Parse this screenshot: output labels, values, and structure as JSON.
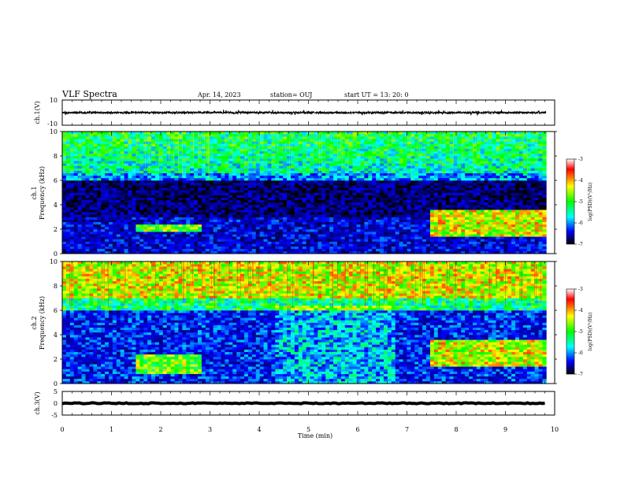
{
  "header": {
    "title": "VLF Spectra",
    "date": "Apr. 14, 2023",
    "station": "station= OUJ",
    "start": "start  UT  =   13: 20: 0"
  },
  "chart_data": [
    {
      "type": "line",
      "panel": "ch1-waveform",
      "ylabel": "ch.1(V)",
      "ylim": [
        -10,
        10
      ],
      "yticks": [
        "10",
        "-10"
      ],
      "xlim": [
        0,
        10
      ],
      "data_extent_min": 9.83,
      "baseline": 0,
      "noise_amplitude": 0.8
    },
    {
      "type": "heatmap",
      "panel": "ch1-spectrogram",
      "ylabel": "ch.1",
      "ylabel2": "Frequency (kHz)",
      "ylim": [
        0,
        10
      ],
      "yticks": [
        "0",
        "2",
        "4",
        "6",
        "8",
        "10"
      ],
      "xlim": [
        0,
        10
      ],
      "data_extent_min": 9.83,
      "colorbar": {
        "label": "log(PSD)(V²/Hz)",
        "range": [
          -7,
          -3
        ],
        "ticks": [
          "-3",
          "-4",
          "-5",
          "-6",
          "-7"
        ]
      },
      "features": [
        {
          "desc": "broadband impulsive noise",
          "f_range_khz": [
            6.5,
            10
          ],
          "level": -5.0
        },
        {
          "desc": "quiet band",
          "f_range_khz": [
            3.0,
            6.0
          ],
          "level": -6.6
        },
        {
          "desc": "emission",
          "t_range_min": [
            7.5,
            9.83
          ],
          "f_range_khz": [
            1.5,
            3.5
          ],
          "level": -4.3
        },
        {
          "desc": "emission",
          "t_range_min": [
            1.5,
            2.8
          ],
          "f_range_khz": [
            1.8,
            2.3
          ],
          "level": -4.6
        }
      ]
    },
    {
      "type": "heatmap",
      "panel": "ch2-spectrogram",
      "ylabel": "ch.2",
      "ylabel2": "Frequency (kHz)",
      "ylim": [
        0,
        10
      ],
      "yticks": [
        "0",
        "2",
        "4",
        "6",
        "8",
        "10"
      ],
      "xlim": [
        0,
        10
      ],
      "data_extent_min": 9.83,
      "colorbar": {
        "label": "log(PSD)(V²/Hz)",
        "range": [
          -7,
          -3
        ],
        "ticks": [
          "-3",
          "-4",
          "-5",
          "-6",
          "-7"
        ]
      },
      "features": [
        {
          "desc": "strong broadband noise",
          "f_range_khz": [
            7.0,
            10
          ],
          "level": -4.2
        },
        {
          "desc": "mid band",
          "f_range_khz": [
            0,
            6.0
          ],
          "level": -6.0
        },
        {
          "desc": "emission",
          "t_range_min": [
            7.5,
            9.83
          ],
          "f_range_khz": [
            1.5,
            3.5
          ],
          "level": -4.3
        },
        {
          "desc": "emission",
          "t_range_min": [
            1.5,
            2.8
          ],
          "f_range_khz": [
            0.8,
            2.4
          ],
          "level": -4.6
        }
      ]
    },
    {
      "type": "line",
      "panel": "ch3-waveform",
      "ylabel": "ch.3(V)",
      "ylim": [
        -5,
        5
      ],
      "yticks": [
        "5",
        "0",
        "-5"
      ],
      "xlim": [
        0,
        10
      ],
      "data_extent_min": 9.83,
      "baseline": 0,
      "noise_amplitude": 0.2,
      "xlabel": "Time (min)",
      "xticks": [
        "0",
        "1",
        "2",
        "3",
        "4",
        "5",
        "6",
        "7",
        "8",
        "9",
        "10"
      ]
    }
  ]
}
